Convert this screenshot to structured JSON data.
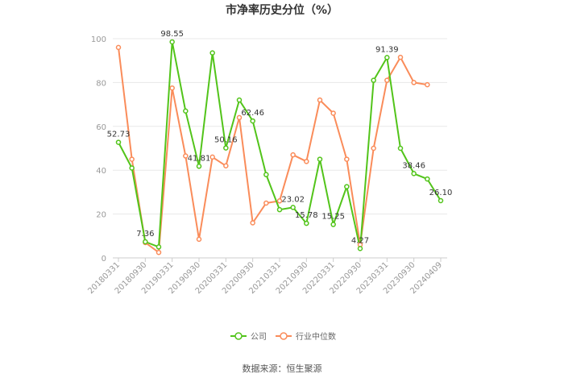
{
  "chart_data": {
    "type": "line",
    "title": "市净率历史分位（%）",
    "source": "数据来源：恒生聚源",
    "ylim": [
      0,
      100
    ],
    "yticks": [
      "0",
      "20",
      "40",
      "60",
      "80",
      "100"
    ],
    "x_tick_labels": [
      "20180331",
      "20180930",
      "20190331",
      "20190930",
      "20200331",
      "20200930",
      "20210331",
      "20210930",
      "20220331",
      "20220930",
      "20230331",
      "20230930",
      "20240409"
    ],
    "grid": true,
    "legend_position": "bottom",
    "series": [
      {
        "name": "公司",
        "color": "#52c41a",
        "values": [
          52.73,
          41.0,
          7.36,
          5.0,
          98.55,
          67.0,
          41.81,
          93.5,
          50.16,
          72.0,
          62.46,
          38.0,
          22.0,
          23.02,
          15.78,
          45.0,
          15.25,
          32.5,
          4.27,
          81.0,
          91.39,
          50.0,
          38.46,
          36.0,
          26.1
        ]
      },
      {
        "name": "行业中位数",
        "color": "#fa8c5a",
        "values": [
          96.0,
          45.0,
          7.0,
          2.5,
          77.5,
          46.5,
          8.5,
          46.0,
          42.0,
          64.0,
          16.0,
          25.0,
          26.0,
          47.0,
          44.0,
          72.0,
          66.0,
          45.0,
          6.0,
          50.0,
          81.0,
          91.5,
          80.0,
          79.0,
          null
        ]
      }
    ],
    "data_labels": [
      {
        "series": 0,
        "index": 0,
        "text": "52.73"
      },
      {
        "series": 0,
        "index": 2,
        "text": "7.36"
      },
      {
        "series": 0,
        "index": 4,
        "text": "98.55"
      },
      {
        "series": 0,
        "index": 6,
        "text": "41.81"
      },
      {
        "series": 0,
        "index": 8,
        "text": "50.16"
      },
      {
        "series": 0,
        "index": 10,
        "text": "62.46"
      },
      {
        "series": 0,
        "index": 13,
        "text": "23.02"
      },
      {
        "series": 0,
        "index": 14,
        "text": "15.78"
      },
      {
        "series": 0,
        "index": 16,
        "text": "15.25"
      },
      {
        "series": 0,
        "index": 18,
        "text": "4.27"
      },
      {
        "series": 0,
        "index": 20,
        "text": "91.39"
      },
      {
        "series": 0,
        "index": 22,
        "text": "38.46"
      },
      {
        "series": 0,
        "index": 24,
        "text": "26.10"
      }
    ]
  }
}
